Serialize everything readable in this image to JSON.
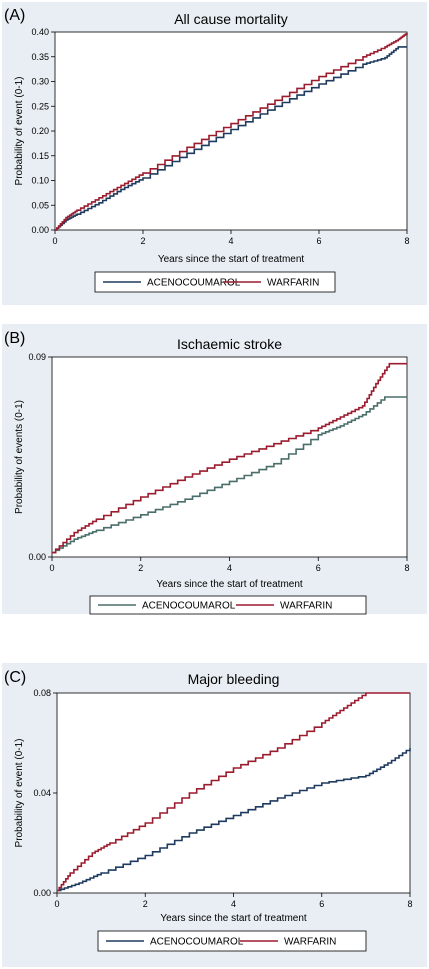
{
  "chart_data": [
    {
      "panel_label": "(A)",
      "type": "line",
      "title": "All cause mortality",
      "xlabel": "Years since the start of  treatment",
      "ylabel": "Probability of event (0-1)",
      "xlim": [
        0,
        8
      ],
      "ylim": [
        0,
        0.4
      ],
      "xticks": [
        0,
        2,
        4,
        6,
        8
      ],
      "xtick_labels": [
        "0",
        "2",
        "4",
        "6",
        "8"
      ],
      "yticks": [
        0,
        0.05,
        0.1,
        0.15,
        0.2,
        0.25,
        0.3,
        0.35,
        0.4
      ],
      "ytick_labels": [
        "0.00",
        "0.05",
        "0.10",
        "0.15",
        "0.20",
        "0.25",
        "0.30",
        "0.35",
        "0.40"
      ],
      "legend_position": "bottom",
      "series": [
        {
          "name": "ACENOCOUMAROL",
          "color": "#1f3a5f",
          "x": [
            0,
            0.25,
            0.5,
            1,
            1.5,
            2,
            3,
            4,
            5,
            6,
            7,
            7.5,
            7.8,
            8.0
          ],
          "y": [
            0,
            0.02,
            0.032,
            0.055,
            0.082,
            0.105,
            0.155,
            0.203,
            0.25,
            0.295,
            0.335,
            0.348,
            0.37,
            0.37
          ]
        },
        {
          "name": "WARFARIN",
          "color": "#9b1c2e",
          "x": [
            0,
            0.25,
            0.5,
            1,
            1.5,
            2,
            3,
            4,
            5,
            6,
            7,
            7.5,
            7.8,
            8.0
          ],
          "y": [
            0,
            0.025,
            0.04,
            0.065,
            0.09,
            0.115,
            0.167,
            0.215,
            0.262,
            0.31,
            0.35,
            0.37,
            0.385,
            0.398
          ]
        }
      ]
    },
    {
      "panel_label": "(B)",
      "type": "line",
      "title": "Ischaemic stroke",
      "xlabel": "Years since the start of treatment",
      "ylabel": "Probability of events (0-1)",
      "xlim": [
        0,
        8
      ],
      "ylim": [
        0,
        0.09
      ],
      "xticks": [
        0,
        2,
        4,
        6,
        8
      ],
      "xtick_labels": [
        "0",
        "2",
        "4",
        "6",
        "8"
      ],
      "yticks": [
        0,
        0.09
      ],
      "ytick_labels": [
        "0.00",
        "0.09"
      ],
      "legend_position": "bottom",
      "series": [
        {
          "name": "ACENOCOUMAROL",
          "color": "#4a6e6a",
          "x": [
            0,
            0.5,
            1,
            2,
            3,
            4,
            5,
            6,
            6.5,
            7,
            7.5,
            8.0
          ],
          "y": [
            0.002,
            0.008,
            0.012,
            0.019,
            0.026,
            0.034,
            0.042,
            0.055,
            0.059,
            0.064,
            0.072,
            0.072
          ]
        },
        {
          "name": "WARFARIN",
          "color": "#9b1c2e",
          "x": [
            0,
            0.5,
            1,
            2,
            3,
            4,
            5,
            6,
            6.5,
            7,
            7.3,
            7.6,
            8.0
          ],
          "y": [
            0.002,
            0.011,
            0.017,
            0.027,
            0.036,
            0.044,
            0.051,
            0.058,
            0.063,
            0.068,
            0.078,
            0.087,
            0.087
          ]
        }
      ]
    },
    {
      "panel_label": "(C)",
      "type": "line",
      "title": "Major bleeding",
      "xlabel": "Years since the start of treatment",
      "ylabel": "Probability of event (0-1)",
      "xlim": [
        0,
        8
      ],
      "ylim": [
        0,
        0.08
      ],
      "xticks": [
        0,
        2,
        4,
        6,
        8
      ],
      "xtick_labels": [
        "0",
        "2",
        "4",
        "6",
        "8"
      ],
      "yticks": [
        0,
        0.04,
        0.08
      ],
      "ytick_labels": [
        "0.00",
        "0.04",
        "0.08"
      ],
      "legend_position": "bottom",
      "series": [
        {
          "name": "ACENOCOUMAROL",
          "color": "#1f3a5f",
          "x": [
            0,
            0.5,
            1,
            2,
            3,
            4,
            5,
            6,
            7,
            7.5,
            8.0
          ],
          "y": [
            0.001,
            0.004,
            0.008,
            0.015,
            0.024,
            0.031,
            0.038,
            0.044,
            0.047,
            0.052,
            0.058
          ]
        },
        {
          "name": "WARFARIN",
          "color": "#9b1c2e",
          "x": [
            0,
            0.3,
            0.8,
            1.2,
            2,
            3,
            4,
            5,
            6,
            6.5,
            7,
            8.0
          ],
          "y": [
            0.001,
            0.008,
            0.016,
            0.02,
            0.028,
            0.04,
            0.05,
            0.058,
            0.068,
            0.074,
            0.08,
            0.08
          ]
        }
      ]
    }
  ]
}
